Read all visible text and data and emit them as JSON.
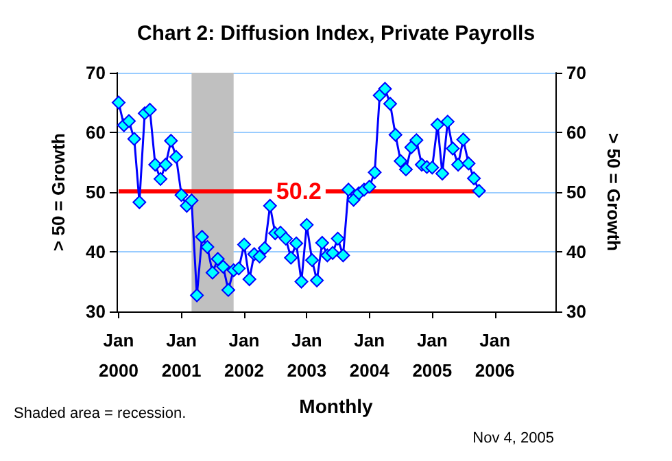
{
  "chart_data": {
    "type": "line",
    "title": "Chart 2: Diffusion Index, Private Payrolls",
    "xlabel": "Monthly",
    "ylabel": "> 50 = Growth",
    "y2label": "> 50 = Growth",
    "annotations": [
      "Shaded area = recession.",
      "Nov 4, 2005"
    ],
    "x": [
      "2000-01",
      "2000-02",
      "2000-03",
      "2000-04",
      "2000-05",
      "2000-06",
      "2000-07",
      "2000-08",
      "2000-09",
      "2000-10",
      "2000-11",
      "2000-12",
      "2001-01",
      "2001-02",
      "2001-03",
      "2001-04",
      "2001-05",
      "2001-06",
      "2001-07",
      "2001-08",
      "2001-09",
      "2001-10",
      "2001-11",
      "2001-12",
      "2002-01",
      "2002-02",
      "2002-03",
      "2002-04",
      "2002-05",
      "2002-06",
      "2002-07",
      "2002-08",
      "2002-09",
      "2002-10",
      "2002-11",
      "2002-12",
      "2003-01",
      "2003-02",
      "2003-03",
      "2003-04",
      "2003-05",
      "2003-06",
      "2003-07",
      "2003-08",
      "2003-09",
      "2003-10",
      "2003-11",
      "2003-12",
      "2004-01",
      "2004-02",
      "2004-03",
      "2004-04",
      "2004-05",
      "2004-06",
      "2004-07",
      "2004-08",
      "2004-09",
      "2004-10",
      "2004-11",
      "2004-12",
      "2005-01",
      "2005-02",
      "2005-03",
      "2005-04",
      "2005-05",
      "2005-06",
      "2005-07",
      "2005-08",
      "2005-09",
      "2005-10"
    ],
    "series": [
      {
        "color": "#0000ff",
        "values": [
          65.0,
          61.2,
          61.9,
          58.9,
          48.3,
          63.2,
          63.8,
          54.6,
          52.2,
          54.6,
          58.6,
          55.9,
          49.5,
          47.7,
          48.6,
          32.7,
          42.5,
          40.8,
          36.5,
          38.8,
          37.5,
          33.6,
          36.9,
          37.2,
          41.2,
          35.4,
          39.6,
          39.2,
          40.6,
          47.7,
          43.1,
          43.2,
          42.2,
          39.0,
          41.4,
          35.0,
          44.5,
          38.6,
          35.2,
          41.5,
          39.4,
          39.8,
          42.2,
          39.4,
          50.4,
          48.7,
          49.8,
          50.4,
          50.9,
          53.3,
          66.2,
          67.3,
          64.8,
          59.6,
          55.2,
          53.8,
          57.5,
          58.7,
          54.6,
          54.2,
          54.1,
          61.3,
          53.1,
          61.8,
          57.3,
          54.6,
          58.8,
          54.8,
          52.3,
          50.2
        ]
      }
    ],
    "marker": "diamond",
    "line_style": "solid",
    "grid": "y",
    "xlim": [
      "1999-12-20",
      "2006-12-20"
    ],
    "xticks": [
      {
        "value": "2000-01",
        "label": "Jan\n2000"
      },
      {
        "value": "2001-01",
        "label": "Jan\n2001"
      },
      {
        "value": "2002-01",
        "label": "Jan\n2002"
      },
      {
        "value": "2003-01",
        "label": "Jan\n2003"
      },
      {
        "value": "2004-01",
        "label": "Jan\n2004"
      },
      {
        "value": "2005-01",
        "label": "Jan\n2005"
      },
      {
        "value": "2006-01",
        "label": "Jan\n2006"
      }
    ],
    "ylim": [
      30,
      70
    ],
    "yticks": [
      30,
      40,
      50,
      60,
      70
    ],
    "y2lim": [
      30,
      70
    ],
    "y2ticks": [
      30,
      40,
      50,
      60,
      70
    ],
    "ref_lines": [
      {
        "axis": "y",
        "value": 50.2,
        "label": "50.2",
        "color": "#ff0000",
        "line_style": "solid"
      }
    ],
    "bands": [
      {
        "axis": "x",
        "from": "2001-03",
        "to": "2001-11",
        "color": "#c0c0c0"
      }
    ]
  }
}
